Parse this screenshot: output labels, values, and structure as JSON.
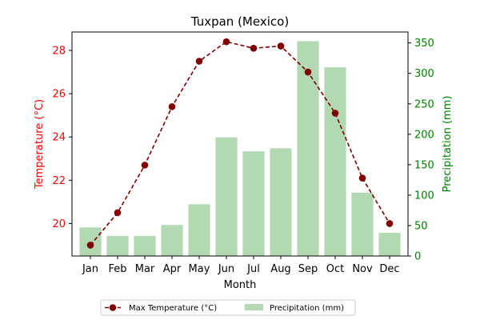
{
  "chart_data": {
    "type": "bar+line",
    "title": "Tuxpan (Mexico)",
    "xlabel": "Month",
    "categories": [
      "Jan",
      "Feb",
      "Mar",
      "Apr",
      "May",
      "Jun",
      "Jul",
      "Aug",
      "Sep",
      "Oct",
      "Nov",
      "Dec"
    ],
    "left_axis": {
      "label": "Temperature (°C)",
      "color": "#ff0000",
      "ylim": [
        18.5,
        28.85
      ],
      "ticks": [
        20,
        22,
        24,
        26,
        28
      ]
    },
    "right_axis": {
      "label": "Precipitation (mm)",
      "color": "#008000",
      "ylim": [
        0,
        368
      ],
      "ticks": [
        0,
        50,
        100,
        150,
        200,
        250,
        300,
        350
      ]
    },
    "series": [
      {
        "name": "Max Temperature (°C)",
        "kind": "line",
        "axis": "left",
        "color": "#800000",
        "style": "dashed",
        "marker": "circle",
        "values": [
          19.0,
          20.5,
          22.7,
          25.4,
          27.5,
          28.4,
          28.1,
          28.2,
          27.0,
          25.1,
          22.1,
          20.0
        ]
      },
      {
        "name": "Precipitation (mm)",
        "kind": "bar",
        "axis": "right",
        "color": "#b2d9b2",
        "values": [
          47,
          33,
          33,
          51,
          85,
          195,
          172,
          177,
          353,
          310,
          104,
          38
        ]
      }
    ],
    "legend": {
      "placement": "bottom-center",
      "entries": [
        "Max Temperature (°C)",
        "Precipitation (mm)"
      ]
    }
  }
}
